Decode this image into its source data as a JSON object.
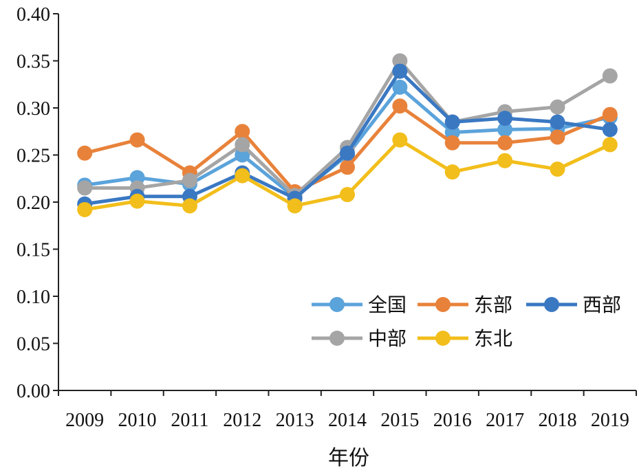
{
  "chart_data": {
    "type": "line",
    "title": "",
    "xlabel": "年份",
    "ylabel": "",
    "categories": [
      "2009",
      "2010",
      "2011",
      "2012",
      "2013",
      "2014",
      "2015",
      "2016",
      "2017",
      "2018",
      "2019"
    ],
    "ylim": [
      0,
      0.4
    ],
    "yticks": [
      "0.00",
      "0.05",
      "0.10",
      "0.15",
      "0.20",
      "0.25",
      "0.30",
      "0.35",
      "0.40"
    ],
    "grid": false,
    "legend_position": "lower-right inside",
    "series": [
      {
        "name": "全国",
        "color": "#5BA3DB",
        "values": [
          0.218,
          0.226,
          0.219,
          0.25,
          0.205,
          0.25,
          0.322,
          0.274,
          0.277,
          0.278,
          0.29
        ]
      },
      {
        "name": "东部",
        "color": "#E8823A",
        "values": [
          0.252,
          0.266,
          0.231,
          0.275,
          0.211,
          0.237,
          0.302,
          0.263,
          0.263,
          0.269,
          0.293
        ]
      },
      {
        "name": "中部",
        "color": "#A5A5A5",
        "values": [
          0.215,
          0.215,
          0.223,
          0.261,
          0.207,
          0.258,
          0.35,
          0.285,
          0.296,
          0.301,
          0.334
        ]
      },
      {
        "name": "西部",
        "color": "#3A78C2",
        "values": [
          0.198,
          0.206,
          0.206,
          0.231,
          0.204,
          0.252,
          0.339,
          0.285,
          0.289,
          0.285,
          0.277
        ]
      },
      {
        "name": "东北",
        "color": "#F2BE1B",
        "values": [
          0.192,
          0.201,
          0.196,
          0.228,
          0.196,
          0.208,
          0.266,
          0.232,
          0.244,
          0.235,
          0.261
        ]
      }
    ]
  }
}
